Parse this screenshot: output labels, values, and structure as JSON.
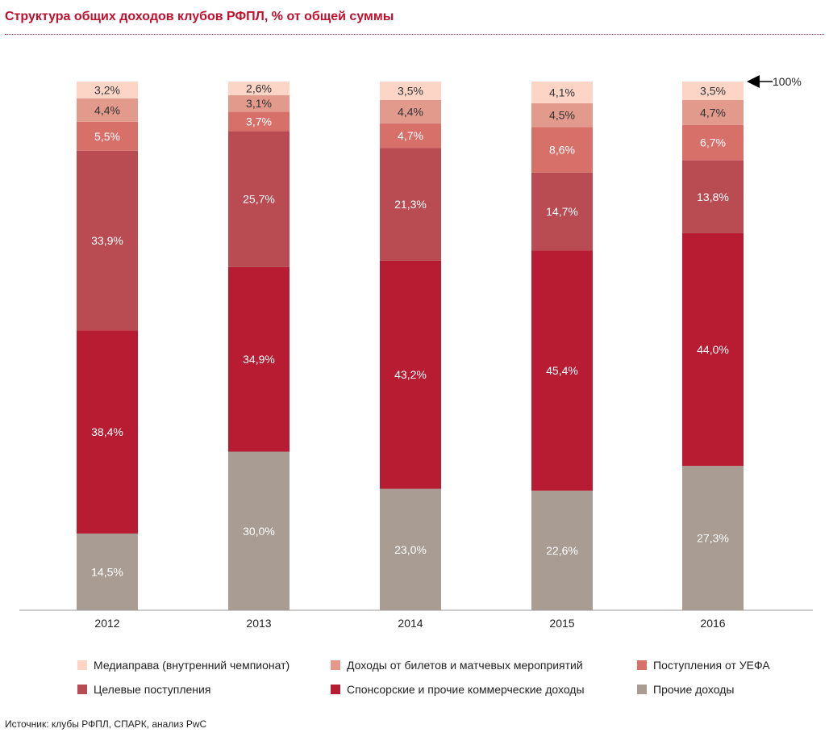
{
  "title": "Структура общих доходов клубов РФПЛ, % от общей суммы",
  "source": "Источник: клубы РФПЛ, СПАРК, анализ PwC",
  "marker_label": "100%",
  "colors": {
    "mediaprava": "#fcd5c6",
    "bilety": "#e19a8c",
    "uefa": "#d8706a",
    "celevye": "#b94c53",
    "sponsor": "#b71c32",
    "prochie": "#a99c92"
  },
  "chart_data": {
    "type": "bar",
    "stacked": true,
    "categories": [
      "2012",
      "2013",
      "2014",
      "2015",
      "2016"
    ],
    "ylim": [
      0,
      100
    ],
    "series": [
      {
        "name": "Прочие доходы",
        "key": "prochie",
        "values": [
          14.5,
          30.0,
          23.0,
          22.6,
          27.3
        ],
        "labels": [
          "14,5%",
          "30,0%",
          "23,0%",
          "22,6%",
          "27,3%"
        ]
      },
      {
        "name": "Спонсорские и прочие коммерческие доходы",
        "key": "sponsor",
        "values": [
          38.4,
          34.9,
          43.2,
          45.4,
          44.0
        ],
        "labels": [
          "38,4%",
          "34,9%",
          "43,2%",
          "45,4%",
          "44,0%"
        ]
      },
      {
        "name": "Целевые поступления",
        "key": "celevye",
        "values": [
          33.9,
          25.7,
          21.3,
          14.7,
          13.8
        ],
        "labels": [
          "33,9%",
          "25,7%",
          "21,3%",
          "14,7%",
          "13,8%"
        ]
      },
      {
        "name": "Поступления от УЕФА",
        "key": "uefa",
        "values": [
          5.5,
          3.7,
          4.7,
          8.6,
          6.7
        ],
        "labels": [
          "5,5%",
          "3,7%",
          "4,7%",
          "8,6%",
          "6,7%"
        ]
      },
      {
        "name": "Доходы от билетов и матчевых мероприятий",
        "key": "bilety",
        "values": [
          4.4,
          3.1,
          4.4,
          4.5,
          4.7
        ],
        "labels": [
          "4,4%",
          "3,1%",
          "4,4%",
          "4,5%",
          "4,7%"
        ]
      },
      {
        "name": "Медиаправа (внутренний чемпионат)",
        "key": "mediaprava",
        "values": [
          3.2,
          2.6,
          3.5,
          4.1,
          3.5
        ],
        "labels": [
          "3,2%",
          "2,6%",
          "3,5%",
          "4,1%",
          "3,5%"
        ]
      }
    ]
  },
  "legend": [
    {
      "key": "mediaprava",
      "label": "Медиаправа (внутренний чемпионат)"
    },
    {
      "key": "bilety",
      "label": "Доходы от билетов и матчевых мероприятий"
    },
    {
      "key": "uefa",
      "label": "Поступления от УЕФА"
    },
    {
      "key": "celevye",
      "label": "Целевые поступления"
    },
    {
      "key": "sponsor",
      "label": "Спонсорские и прочие коммерческие доходы"
    },
    {
      "key": "prochie",
      "label": "Прочие доходы"
    }
  ]
}
